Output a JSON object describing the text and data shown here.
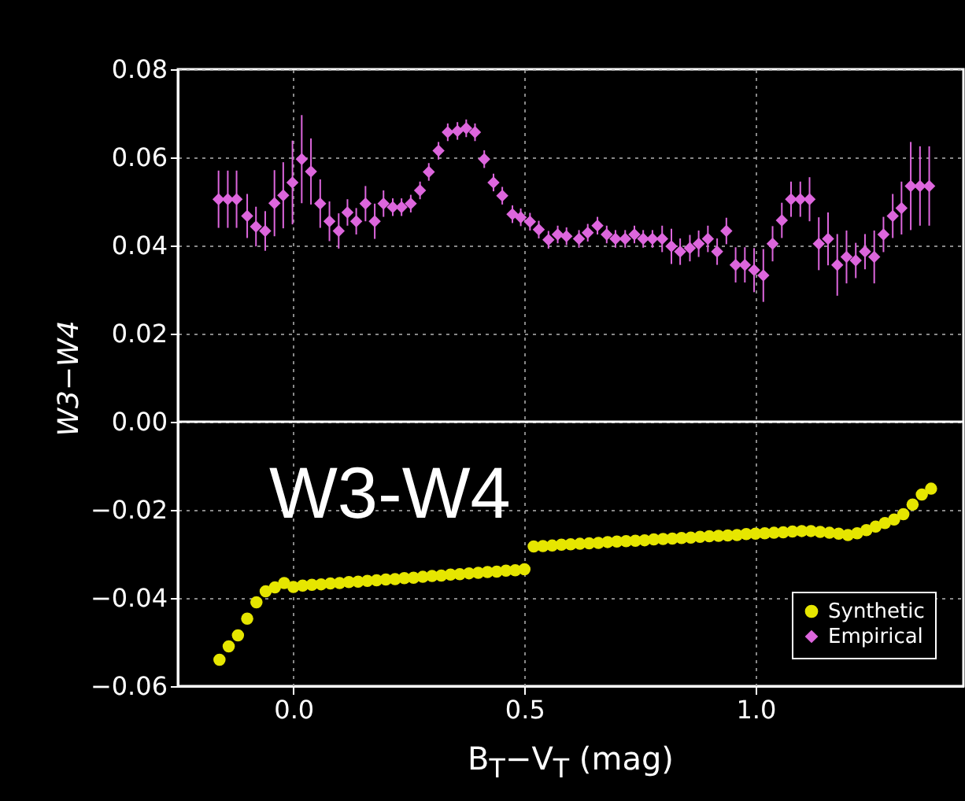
{
  "chart_data": {
    "type": "scatter",
    "xlabel": "B$_{T}$−V$_{T}$ (mag)",
    "ylabel": "W3−W4",
    "annotations": [
      "W3-W4"
    ],
    "xlim": [
      -0.25,
      1.45
    ],
    "ylim": [
      -0.06,
      0.08
    ],
    "xticks": [
      {
        "value": 0,
        "label": "0.0"
      },
      {
        "value": 0.5,
        "label": "0.5"
      },
      {
        "value": 1,
        "label": "1.0"
      }
    ],
    "yticks": [
      {
        "value": -0.06,
        "label": "−0.06"
      },
      {
        "value": -0.04,
        "label": "−0.04"
      },
      {
        "value": -0.02,
        "label": "−0.02"
      },
      {
        "value": 0,
        "label": "0.00"
      },
      {
        "value": 0.02,
        "label": "0.02"
      },
      {
        "value": 0.04,
        "label": "0.04"
      },
      {
        "value": 0.06,
        "label": "0.06"
      },
      {
        "value": 0.08,
        "label": "0.08"
      }
    ],
    "grid": true,
    "legend": "bottom right",
    "ref_lines": [
      {
        "axis": "y",
        "value": 0,
        "color": "#ffffff"
      }
    ],
    "series": [
      {
        "name": "Synthetic",
        "color": "#e6e600",
        "marker": "circle",
        "x": [
          -0.16,
          -0.14,
          -0.12,
          -0.1,
          -0.08,
          -0.06,
          -0.04,
          -0.02,
          0.0,
          0.02,
          0.04,
          0.06,
          0.08,
          0.1,
          0.12,
          0.14,
          0.16,
          0.18,
          0.2,
          0.22,
          0.24,
          0.26,
          0.28,
          0.3,
          0.32,
          0.34,
          0.36,
          0.38,
          0.4,
          0.42,
          0.44,
          0.46,
          0.48,
          0.5,
          0.52,
          0.54,
          0.56,
          0.58,
          0.6,
          0.62,
          0.64,
          0.66,
          0.68,
          0.7,
          0.72,
          0.74,
          0.76,
          0.78,
          0.8,
          0.82,
          0.84,
          0.86,
          0.88,
          0.9,
          0.92,
          0.94,
          0.96,
          0.98,
          1.0,
          1.02,
          1.04,
          1.06,
          1.08,
          1.1,
          1.12,
          1.14,
          1.16,
          1.18,
          1.2,
          1.22,
          1.24,
          1.26,
          1.28,
          1.3,
          1.32,
          1.34,
          1.36,
          1.38
        ],
        "values": [
          -0.054,
          -0.051,
          -0.0485,
          -0.0447,
          -0.041,
          -0.0385,
          -0.0376,
          -0.0366,
          -0.0375,
          -0.0372,
          -0.037,
          -0.0369,
          -0.0367,
          -0.0366,
          -0.0364,
          -0.0363,
          -0.0361,
          -0.036,
          -0.0358,
          -0.0357,
          -0.0355,
          -0.0354,
          -0.0352,
          -0.035,
          -0.0349,
          -0.0347,
          -0.0346,
          -0.0344,
          -0.0343,
          -0.0341,
          -0.034,
          -0.0338,
          -0.0337,
          -0.0335,
          -0.0283,
          -0.0282,
          -0.0281,
          -0.0279,
          -0.0278,
          -0.0277,
          -0.0276,
          -0.0275,
          -0.0273,
          -0.0272,
          -0.0271,
          -0.027,
          -0.0269,
          -0.0267,
          -0.0266,
          -0.0265,
          -0.0264,
          -0.0263,
          -0.0261,
          -0.026,
          -0.0259,
          -0.0258,
          -0.0257,
          -0.0255,
          -0.0254,
          -0.0253,
          -0.0252,
          -0.0251,
          -0.0249,
          -0.0248,
          -0.0248,
          -0.025,
          -0.0252,
          -0.0254,
          -0.0257,
          -0.0253,
          -0.0246,
          -0.0238,
          -0.023,
          -0.0222,
          -0.021,
          -0.0188,
          -0.0165,
          -0.0152
        ]
      },
      {
        "name": "Empirical",
        "color": "#dd66dd",
        "marker": "diamond",
        "x": [
          -0.162,
          -0.142,
          -0.123,
          -0.1,
          -0.081,
          -0.061,
          -0.041,
          -0.022,
          -0.002,
          0.018,
          0.038,
          0.058,
          0.078,
          0.098,
          0.117,
          0.136,
          0.156,
          0.176,
          0.195,
          0.215,
          0.234,
          0.254,
          0.274,
          0.293,
          0.314,
          0.334,
          0.355,
          0.374,
          0.393,
          0.413,
          0.433,
          0.452,
          0.474,
          0.492,
          0.512,
          0.531,
          0.552,
          0.572,
          0.591,
          0.618,
          0.637,
          0.658,
          0.678,
          0.697,
          0.718,
          0.738,
          0.757,
          0.777,
          0.798,
          0.818,
          0.837,
          0.858,
          0.877,
          0.897,
          0.917,
          0.937,
          0.957,
          0.977,
          0.997,
          1.017,
          1.037,
          1.057,
          1.077,
          1.097,
          1.117,
          1.137,
          1.157,
          1.177,
          1.197,
          1.217,
          1.237,
          1.257,
          1.277,
          1.297,
          1.316,
          1.336,
          1.356,
          1.376
        ],
        "values": [
          0.0505,
          0.0505,
          0.0505,
          0.0467,
          0.0443,
          0.0433,
          0.0496,
          0.0514,
          0.0543,
          0.0596,
          0.0568,
          0.0495,
          0.0455,
          0.0433,
          0.0475,
          0.0455,
          0.0495,
          0.0455,
          0.0495,
          0.0487,
          0.0487,
          0.0495,
          0.0525,
          0.0567,
          0.0615,
          0.0657,
          0.066,
          0.0666,
          0.0657,
          0.0596,
          0.0543,
          0.0513,
          0.0471,
          0.0464,
          0.0454,
          0.0436,
          0.0413,
          0.0425,
          0.0421,
          0.0415,
          0.0429,
          0.0445,
          0.0425,
          0.0415,
          0.0415,
          0.0425,
          0.0415,
          0.0415,
          0.0415,
          0.0398,
          0.0386,
          0.0394,
          0.0404,
          0.0415,
          0.0386,
          0.0433,
          0.0356,
          0.0356,
          0.0344,
          0.0332,
          0.0404,
          0.0457,
          0.0505,
          0.0505,
          0.0505,
          0.0404,
          0.0415,
          0.0356,
          0.0374,
          0.0366,
          0.0386,
          0.0374,
          0.0425,
          0.0467,
          0.0485,
          0.0535,
          0.0535,
          0.0535
        ],
        "errors": [
          0.0065,
          0.0065,
          0.0065,
          0.005,
          0.0045,
          0.0045,
          0.0075,
          0.0075,
          0.0095,
          0.01,
          0.0075,
          0.0055,
          0.0045,
          0.004,
          0.003,
          0.003,
          0.004,
          0.004,
          0.003,
          0.002,
          0.002,
          0.002,
          0.002,
          0.002,
          0.002,
          0.002,
          0.002,
          0.002,
          0.002,
          0.002,
          0.002,
          0.002,
          0.002,
          0.002,
          0.002,
          0.002,
          0.002,
          0.002,
          0.002,
          0.002,
          0.002,
          0.002,
          0.002,
          0.002,
          0.002,
          0.002,
          0.002,
          0.002,
          0.003,
          0.004,
          0.003,
          0.003,
          0.003,
          0.003,
          0.003,
          0.003,
          0.004,
          0.004,
          0.005,
          0.006,
          0.004,
          0.004,
          0.004,
          0.004,
          0.005,
          0.006,
          0.006,
          0.007,
          0.006,
          0.004,
          0.004,
          0.006,
          0.004,
          0.005,
          0.006,
          0.01,
          0.009,
          0.009
        ]
      }
    ]
  }
}
